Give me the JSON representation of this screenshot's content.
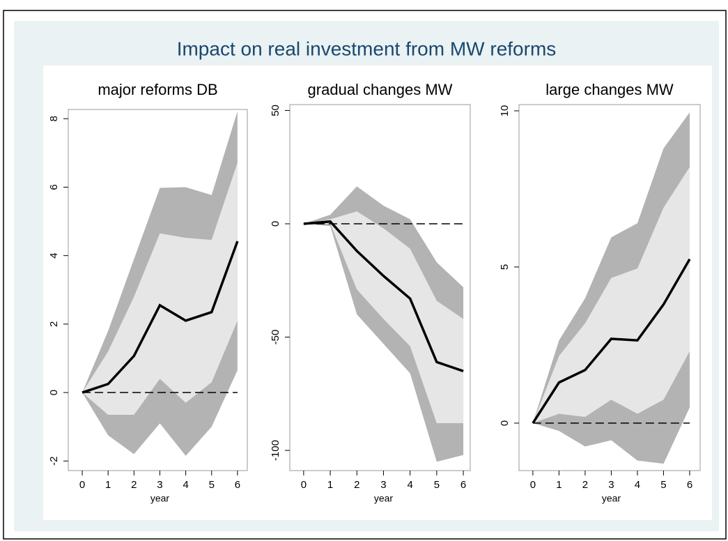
{
  "title": "Impact on real investment from MW reforms",
  "chart_data": [
    {
      "type": "line",
      "title": "major reforms DB",
      "xlabel": "year",
      "x": [
        0,
        1,
        2,
        3,
        4,
        5,
        6
      ],
      "xlim": [
        -0.54,
        6.38
      ],
      "xticks": [
        0,
        1,
        2,
        3,
        4,
        5,
        6
      ],
      "ylim": [
        -2.28,
        8.27
      ],
      "yticks": [
        -2,
        0,
        2,
        4,
        6,
        8
      ],
      "values": [
        0,
        0.25,
        1.07,
        2.55,
        2.1,
        2.35,
        4.42
      ],
      "color": "#000000",
      "reference_line": 0,
      "bands": [
        {
          "lower": [
            0,
            -1.25,
            -1.8,
            -0.9,
            -1.85,
            -1.0,
            0.65
          ],
          "upper": [
            0,
            1.8,
            3.9,
            5.98,
            6.0,
            5.77,
            8.22
          ],
          "color": "#b3b3b3"
        },
        {
          "lower": [
            0,
            -0.65,
            -0.65,
            0.4,
            -0.3,
            0.3,
            2.1
          ],
          "upper": [
            0,
            1.2,
            2.8,
            4.65,
            4.52,
            4.46,
            6.72
          ],
          "color": "#e6e6e6"
        }
      ]
    },
    {
      "type": "line",
      "title": "gradual changes MW",
      "xlabel": "year",
      "x": [
        0,
        1,
        2,
        3,
        4,
        5,
        6
      ],
      "xlim": [
        -0.52,
        6.26
      ],
      "xticks": [
        0,
        1,
        2,
        3,
        4,
        5,
        6
      ],
      "ylim": [
        -108.9,
        52.6
      ],
      "yticks": [
        -100,
        -50,
        0,
        50
      ],
      "values": [
        0,
        1,
        -12,
        -23,
        -33,
        -61,
        -65
      ],
      "color": "#000000",
      "reference_line": 0,
      "bands": [
        {
          "lower": [
            0,
            -1,
            -40,
            -53,
            -66,
            -105,
            -102
          ],
          "upper": [
            0,
            4,
            16.5,
            8,
            2,
            -17,
            -28
          ],
          "color": "#b3b3b3"
        },
        {
          "lower": [
            0,
            0,
            -29,
            -42,
            -54,
            -88,
            -88
          ],
          "upper": [
            0,
            2,
            5.5,
            -2,
            -11,
            -34,
            -42
          ],
          "color": "#e6e6e6"
        }
      ]
    },
    {
      "type": "line",
      "title": "large changes MW",
      "xlabel": "year",
      "x": [
        0,
        1,
        2,
        3,
        4,
        5,
        6
      ],
      "xlim": [
        -0.53,
        6.4
      ],
      "xticks": [
        0,
        1,
        2,
        3,
        4,
        5,
        6
      ],
      "ylim": [
        -1.52,
        10.2
      ],
      "yticks": [
        0,
        5,
        10
      ],
      "values": [
        0,
        1.3,
        1.7,
        2.7,
        2.65,
        3.8,
        5.25
      ],
      "color": "#000000",
      "reference_line": 0,
      "bands": [
        {
          "lower": [
            0,
            -0.25,
            -0.75,
            -0.55,
            -1.2,
            -1.3,
            0.5
          ],
          "upper": [
            0,
            2.65,
            4.0,
            5.95,
            6.4,
            8.8,
            9.95
          ],
          "color": "#b3b3b3"
        },
        {
          "lower": [
            0,
            0.3,
            0.2,
            0.75,
            0.3,
            0.75,
            2.3
          ],
          "upper": [
            0,
            2.15,
            3.2,
            4.65,
            4.95,
            6.9,
            8.2
          ],
          "color": "#e6e6e6"
        }
      ]
    }
  ]
}
